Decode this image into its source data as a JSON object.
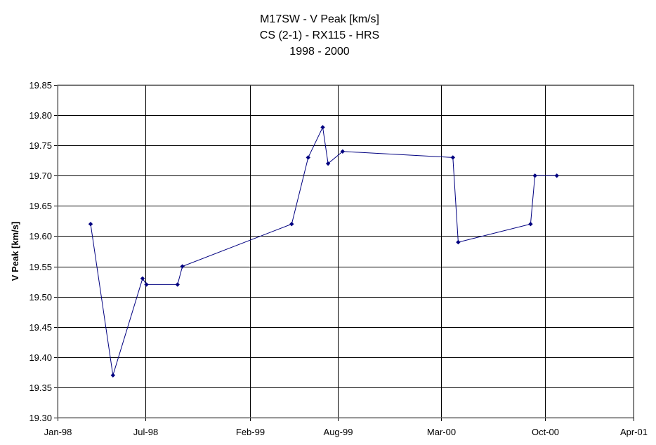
{
  "chart_data": {
    "type": "line",
    "title_lines": [
      "M17SW - V Peak [km/s]",
      "CS (2-1) - RX115 - HRS",
      "1998 - 2000"
    ],
    "xlabel": "",
    "ylabel": "V Peak [km/s]",
    "x_axis_type": "date",
    "xlim": [
      "1998-01-01",
      "2001-04-01"
    ],
    "x_ticks": [
      {
        "date": "1998-01-01",
        "label": "Jan-98"
      },
      {
        "date": "1998-07-01",
        "label": "Jul-98"
      },
      {
        "date": "1999-02-01",
        "label": "Feb-99"
      },
      {
        "date": "1999-08-01",
        "label": "Aug-99"
      },
      {
        "date": "2000-03-01",
        "label": "Mar-00"
      },
      {
        "date": "2000-10-01",
        "label": "Oct-00"
      },
      {
        "date": "2001-04-01",
        "label": "Apr-01"
      }
    ],
    "ylim": [
      19.3,
      19.85
    ],
    "y_ticks": [
      "19.30",
      "19.35",
      "19.40",
      "19.45",
      "19.50",
      "19.55",
      "19.60",
      "19.65",
      "19.70",
      "19.75",
      "19.80",
      "19.85"
    ],
    "grid": {
      "horizontal": true,
      "vertical": true
    },
    "legend": "none",
    "colors": {
      "series": "#000080",
      "grid": "#000000",
      "plot_border": "#808080",
      "background": "#ffffff"
    },
    "series": [
      {
        "points": [
          {
            "x": "1998-03-10",
            "y": 19.62
          },
          {
            "x": "1998-04-25",
            "y": 19.37
          },
          {
            "x": "1998-06-25",
            "y": 19.53
          },
          {
            "x": "1998-07-03",
            "y": 19.52
          },
          {
            "x": "1998-09-05",
            "y": 19.52
          },
          {
            "x": "1998-09-15",
            "y": 19.55
          },
          {
            "x": "1999-04-28",
            "y": 19.62
          },
          {
            "x": "1999-06-01",
            "y": 19.73
          },
          {
            "x": "1999-07-01",
            "y": 19.78
          },
          {
            "x": "1999-07-12",
            "y": 19.72
          },
          {
            "x": "1999-08-11",
            "y": 19.74
          },
          {
            "x": "2000-03-25",
            "y": 19.73
          },
          {
            "x": "2000-04-05",
            "y": 19.59
          },
          {
            "x": "2000-09-01",
            "y": 19.62
          },
          {
            "x": "2000-09-10",
            "y": 19.7
          },
          {
            "x": "2000-10-25",
            "y": 19.7
          }
        ]
      }
    ]
  }
}
